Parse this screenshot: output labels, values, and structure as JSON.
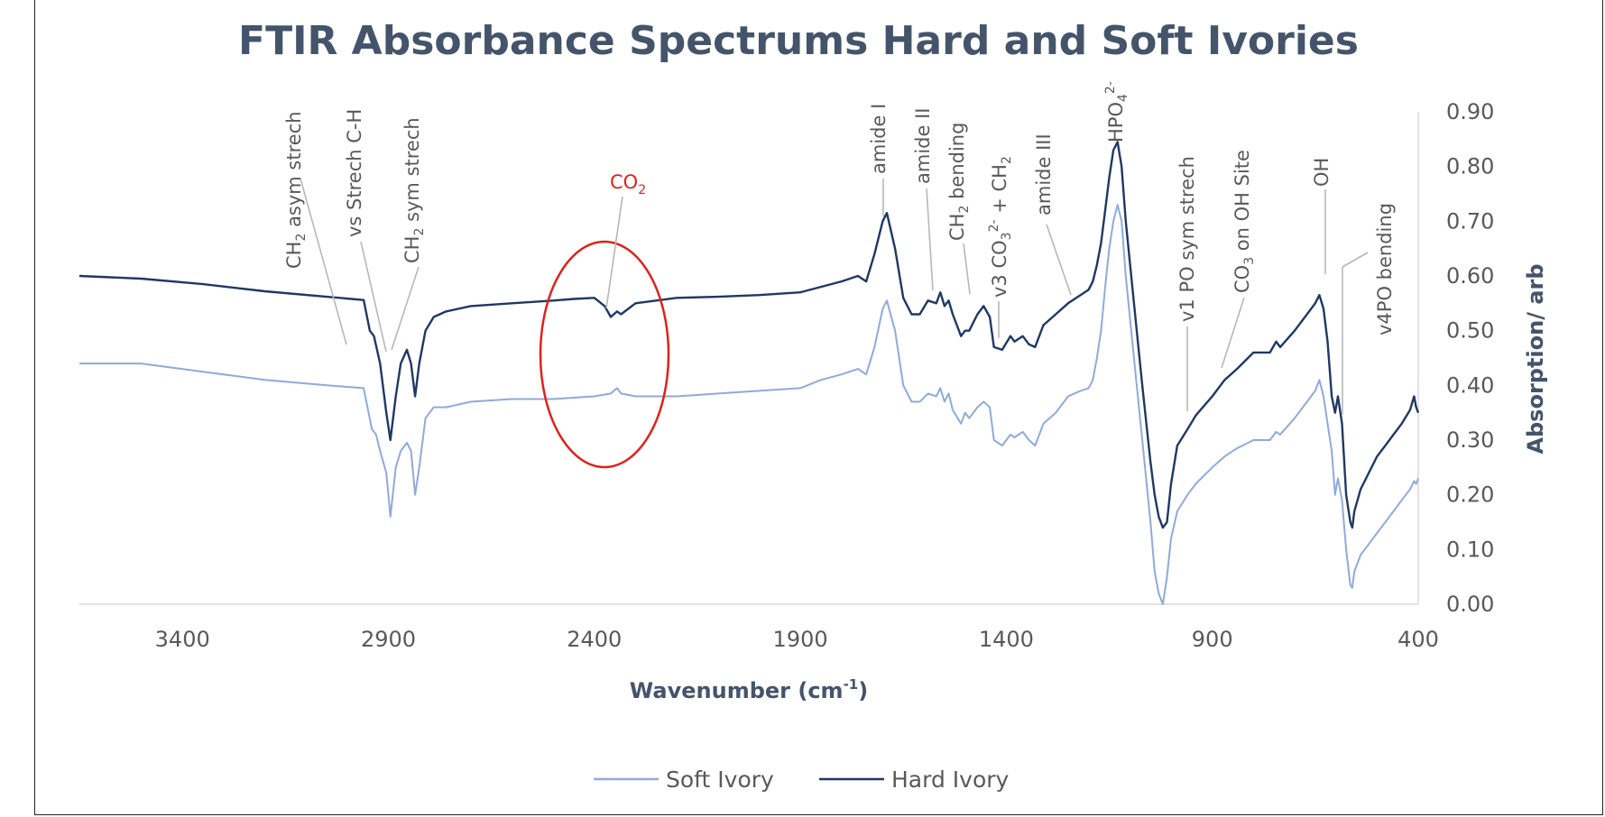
{
  "colors": {
    "soft": "#8faadc",
    "hard": "#1f3864",
    "co2_circle": "#e0211b",
    "title": "#44546a",
    "gridline": "#d9d9d9"
  },
  "chart_data": {
    "type": "line",
    "title": "FTIR Absorbance Spectrums Hard and Soft Ivories",
    "xlabel_main": "Wavenumber (cm",
    "xlabel_sup": "-1",
    "xlabel_close": ")",
    "ylabel": "Absorption/ arb",
    "xlim": [
      3650,
      400
    ],
    "x_reversed": true,
    "ylim": [
      0,
      0.9
    ],
    "x_ticks": [
      "3400",
      "2900",
      "2400",
      "1900",
      "1400",
      "900",
      "400"
    ],
    "y_ticks": [
      "0.00",
      "0.10",
      "0.20",
      "0.30",
      "0.40",
      "0.50",
      "0.60",
      "0.70",
      "0.80",
      "0.90"
    ],
    "y_axis_side": "right",
    "legend_position": "bottom",
    "grid": false,
    "series": [
      {
        "name": "Soft Ivory",
        "color": "#8faadc",
        "points": [
          [
            3650,
            0.44
          ],
          [
            3500,
            0.44
          ],
          [
            3350,
            0.425
          ],
          [
            3200,
            0.41
          ],
          [
            3050,
            0.4
          ],
          [
            2960,
            0.395
          ],
          [
            2940,
            0.32
          ],
          [
            2930,
            0.31
          ],
          [
            2920,
            0.28
          ],
          [
            2905,
            0.24
          ],
          [
            2895,
            0.16
          ],
          [
            2882,
            0.25
          ],
          [
            2870,
            0.28
          ],
          [
            2855,
            0.295
          ],
          [
            2845,
            0.28
          ],
          [
            2835,
            0.2
          ],
          [
            2825,
            0.25
          ],
          [
            2810,
            0.34
          ],
          [
            2790,
            0.36
          ],
          [
            2760,
            0.36
          ],
          [
            2700,
            0.37
          ],
          [
            2600,
            0.375
          ],
          [
            2500,
            0.375
          ],
          [
            2400,
            0.38
          ],
          [
            2360,
            0.385
          ],
          [
            2345,
            0.395
          ],
          [
            2335,
            0.385
          ],
          [
            2300,
            0.38
          ],
          [
            2200,
            0.38
          ],
          [
            2100,
            0.385
          ],
          [
            2000,
            0.39
          ],
          [
            1900,
            0.395
          ],
          [
            1850,
            0.41
          ],
          [
            1800,
            0.42
          ],
          [
            1760,
            0.43
          ],
          [
            1740,
            0.42
          ],
          [
            1720,
            0.47
          ],
          [
            1700,
            0.54
          ],
          [
            1690,
            0.555
          ],
          [
            1670,
            0.5
          ],
          [
            1650,
            0.4
          ],
          [
            1630,
            0.37
          ],
          [
            1610,
            0.37
          ],
          [
            1590,
            0.385
          ],
          [
            1570,
            0.38
          ],
          [
            1560,
            0.395
          ],
          [
            1550,
            0.37
          ],
          [
            1540,
            0.385
          ],
          [
            1530,
            0.355
          ],
          [
            1510,
            0.33
          ],
          [
            1500,
            0.35
          ],
          [
            1490,
            0.34
          ],
          [
            1470,
            0.36
          ],
          [
            1455,
            0.37
          ],
          [
            1440,
            0.36
          ],
          [
            1430,
            0.3
          ],
          [
            1410,
            0.29
          ],
          [
            1390,
            0.31
          ],
          [
            1380,
            0.305
          ],
          [
            1360,
            0.315
          ],
          [
            1345,
            0.3
          ],
          [
            1330,
            0.29
          ],
          [
            1310,
            0.33
          ],
          [
            1280,
            0.35
          ],
          [
            1250,
            0.38
          ],
          [
            1220,
            0.39
          ],
          [
            1200,
            0.395
          ],
          [
            1190,
            0.41
          ],
          [
            1180,
            0.45
          ],
          [
            1170,
            0.5
          ],
          [
            1160,
            0.58
          ],
          [
            1150,
            0.65
          ],
          [
            1140,
            0.7
          ],
          [
            1130,
            0.73
          ],
          [
            1120,
            0.7
          ],
          [
            1110,
            0.6
          ],
          [
            1090,
            0.45
          ],
          [
            1070,
            0.3
          ],
          [
            1050,
            0.15
          ],
          [
            1040,
            0.06
          ],
          [
            1030,
            0.02
          ],
          [
            1020,
            0
          ],
          [
            1010,
            0.05
          ],
          [
            1000,
            0.12
          ],
          [
            985,
            0.17
          ],
          [
            960,
            0.2
          ],
          [
            940,
            0.22
          ],
          [
            900,
            0.25
          ],
          [
            870,
            0.27
          ],
          [
            840,
            0.285
          ],
          [
            800,
            0.3
          ],
          [
            760,
            0.3
          ],
          [
            745,
            0.315
          ],
          [
            735,
            0.31
          ],
          [
            700,
            0.34
          ],
          [
            670,
            0.37
          ],
          [
            650,
            0.39
          ],
          [
            640,
            0.41
          ],
          [
            630,
            0.38
          ],
          [
            620,
            0.33
          ],
          [
            610,
            0.28
          ],
          [
            602,
            0.2
          ],
          [
            595,
            0.23
          ],
          [
            585,
            0.19
          ],
          [
            575,
            0.1
          ],
          [
            565,
            0.035
          ],
          [
            560,
            0.03
          ],
          [
            555,
            0.06
          ],
          [
            540,
            0.09
          ],
          [
            520,
            0.11
          ],
          [
            500,
            0.13
          ],
          [
            480,
            0.15
          ],
          [
            460,
            0.17
          ],
          [
            440,
            0.19
          ],
          [
            420,
            0.21
          ],
          [
            410,
            0.225
          ],
          [
            405,
            0.22
          ],
          [
            400,
            0.23
          ]
        ]
      },
      {
        "name": "Hard Ivory",
        "color": "#1f3864",
        "points": [
          [
            3650,
            0.6
          ],
          [
            3500,
            0.595
          ],
          [
            3350,
            0.585
          ],
          [
            3200,
            0.572
          ],
          [
            3050,
            0.562
          ],
          [
            2960,
            0.556
          ],
          [
            2945,
            0.5
          ],
          [
            2935,
            0.49
          ],
          [
            2920,
            0.44
          ],
          [
            2905,
            0.35
          ],
          [
            2895,
            0.3
          ],
          [
            2882,
            0.38
          ],
          [
            2870,
            0.44
          ],
          [
            2855,
            0.465
          ],
          [
            2845,
            0.44
          ],
          [
            2835,
            0.38
          ],
          [
            2825,
            0.44
          ],
          [
            2810,
            0.5
          ],
          [
            2790,
            0.525
          ],
          [
            2760,
            0.535
          ],
          [
            2700,
            0.545
          ],
          [
            2600,
            0.55
          ],
          [
            2500,
            0.555
          ],
          [
            2450,
            0.558
          ],
          [
            2400,
            0.56
          ],
          [
            2375,
            0.545
          ],
          [
            2360,
            0.525
          ],
          [
            2345,
            0.535
          ],
          [
            2335,
            0.53
          ],
          [
            2300,
            0.55
          ],
          [
            2200,
            0.56
          ],
          [
            2100,
            0.562
          ],
          [
            2000,
            0.565
          ],
          [
            1900,
            0.57
          ],
          [
            1850,
            0.58
          ],
          [
            1800,
            0.59
          ],
          [
            1760,
            0.6
          ],
          [
            1740,
            0.59
          ],
          [
            1720,
            0.64
          ],
          [
            1700,
            0.7
          ],
          [
            1690,
            0.715
          ],
          [
            1670,
            0.65
          ],
          [
            1650,
            0.56
          ],
          [
            1630,
            0.53
          ],
          [
            1610,
            0.53
          ],
          [
            1590,
            0.555
          ],
          [
            1570,
            0.55
          ],
          [
            1560,
            0.57
          ],
          [
            1550,
            0.545
          ],
          [
            1540,
            0.555
          ],
          [
            1530,
            0.53
          ],
          [
            1510,
            0.49
          ],
          [
            1500,
            0.5
          ],
          [
            1490,
            0.5
          ],
          [
            1470,
            0.53
          ],
          [
            1455,
            0.545
          ],
          [
            1440,
            0.525
          ],
          [
            1430,
            0.47
          ],
          [
            1410,
            0.465
          ],
          [
            1390,
            0.49
          ],
          [
            1380,
            0.48
          ],
          [
            1360,
            0.49
          ],
          [
            1345,
            0.475
          ],
          [
            1330,
            0.47
          ],
          [
            1310,
            0.51
          ],
          [
            1280,
            0.53
          ],
          [
            1250,
            0.55
          ],
          [
            1220,
            0.565
          ],
          [
            1200,
            0.575
          ],
          [
            1190,
            0.59
          ],
          [
            1180,
            0.62
          ],
          [
            1170,
            0.66
          ],
          [
            1160,
            0.72
          ],
          [
            1150,
            0.78
          ],
          [
            1140,
            0.83
          ],
          [
            1130,
            0.845
          ],
          [
            1120,
            0.8
          ],
          [
            1110,
            0.7
          ],
          [
            1090,
            0.55
          ],
          [
            1070,
            0.4
          ],
          [
            1050,
            0.26
          ],
          [
            1040,
            0.2
          ],
          [
            1030,
            0.16
          ],
          [
            1020,
            0.14
          ],
          [
            1010,
            0.15
          ],
          [
            1000,
            0.22
          ],
          [
            985,
            0.29
          ],
          [
            960,
            0.32
          ],
          [
            940,
            0.345
          ],
          [
            900,
            0.38
          ],
          [
            870,
            0.41
          ],
          [
            840,
            0.43
          ],
          [
            800,
            0.46
          ],
          [
            760,
            0.46
          ],
          [
            745,
            0.48
          ],
          [
            735,
            0.47
          ],
          [
            700,
            0.5
          ],
          [
            670,
            0.53
          ],
          [
            650,
            0.55
          ],
          [
            640,
            0.565
          ],
          [
            630,
            0.54
          ],
          [
            620,
            0.48
          ],
          [
            610,
            0.38
          ],
          [
            602,
            0.35
          ],
          [
            595,
            0.38
          ],
          [
            585,
            0.33
          ],
          [
            575,
            0.2
          ],
          [
            565,
            0.15
          ],
          [
            560,
            0.14
          ],
          [
            555,
            0.17
          ],
          [
            540,
            0.21
          ],
          [
            520,
            0.24
          ],
          [
            500,
            0.27
          ],
          [
            480,
            0.29
          ],
          [
            460,
            0.31
          ],
          [
            440,
            0.33
          ],
          [
            420,
            0.355
          ],
          [
            410,
            0.38
          ],
          [
            405,
            0.36
          ],
          [
            400,
            0.35
          ]
        ]
      }
    ],
    "annotations": [
      {
        "id": "ch2-asym",
        "parts": [
          [
            "CH",
            ""
          ],
          [
            "2",
            "sub"
          ],
          [
            " asym strech",
            ""
          ]
        ]
      },
      {
        "id": "vs-strech",
        "parts": [
          [
            "vs Strech C-H",
            ""
          ]
        ]
      },
      {
        "id": "ch2-sym",
        "parts": [
          [
            "CH",
            ""
          ],
          [
            "2",
            "sub"
          ],
          [
            " sym strech",
            ""
          ]
        ]
      },
      {
        "id": "amide-i",
        "parts": [
          [
            "amide I",
            ""
          ]
        ]
      },
      {
        "id": "amide-ii",
        "parts": [
          [
            "amide II",
            ""
          ]
        ]
      },
      {
        "id": "ch2-bending",
        "parts": [
          [
            "CH",
            ""
          ],
          [
            "2",
            "sub"
          ],
          [
            " bending",
            ""
          ]
        ]
      },
      {
        "id": "v3-co3",
        "parts": [
          [
            "v3 CO",
            ""
          ],
          [
            "3",
            "sub"
          ],
          [
            "2-",
            "sup"
          ],
          [
            " + CH",
            ""
          ],
          [
            "2",
            "sub"
          ]
        ]
      },
      {
        "id": "amide-iii",
        "parts": [
          [
            "amide III",
            ""
          ]
        ]
      },
      {
        "id": "hpo4",
        "parts": [
          [
            "HPO",
            ""
          ],
          [
            "4",
            "sub"
          ],
          [
            "2-",
            "sup"
          ]
        ]
      },
      {
        "id": "v1-po",
        "parts": [
          [
            "v1 PO sym strech",
            ""
          ]
        ]
      },
      {
        "id": "co3-oh",
        "parts": [
          [
            "CO",
            ""
          ],
          [
            "3",
            "sub"
          ],
          [
            " on OH Site",
            ""
          ]
        ]
      },
      {
        "id": "oh",
        "parts": [
          [
            "OH",
            ""
          ]
        ]
      },
      {
        "id": "v4po",
        "parts": [
          [
            "v4PO bending",
            ""
          ]
        ]
      }
    ],
    "co2_label": {
      "main": "CO",
      "sub": "2"
    }
  }
}
